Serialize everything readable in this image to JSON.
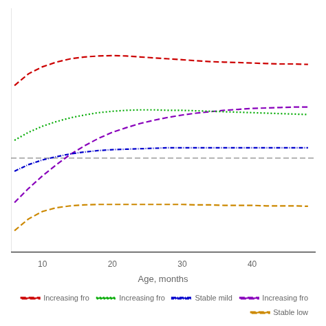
{
  "chart_data": {
    "type": "line",
    "xlabel": "Age, months",
    "x": [
      6,
      8,
      10,
      12,
      14,
      16,
      18,
      20,
      22,
      24,
      26,
      28,
      30,
      32,
      34,
      36,
      38,
      40,
      42,
      44,
      46,
      48
    ],
    "series": [
      {
        "name": "Increasing fro",
        "color": "#cc0000",
        "line_style": "dashed",
        "values": [
          1.55,
          1.8,
          1.95,
          2.05,
          2.12,
          2.16,
          2.18,
          2.19,
          2.18,
          2.16,
          2.14,
          2.12,
          2.1,
          2.08,
          2.06,
          2.05,
          2.04,
          2.03,
          2.02,
          2.01,
          2.01,
          2.0
        ]
      },
      {
        "name": "Increasing fro",
        "color": "#00aa00",
        "line_style": "dotted",
        "values": [
          0.38,
          0.55,
          0.68,
          0.78,
          0.86,
          0.92,
          0.97,
          1.0,
          1.02,
          1.03,
          1.03,
          1.02,
          1.02,
          1.01,
          1.0,
          0.99,
          0.98,
          0.97,
          0.96,
          0.95,
          0.94,
          0.93
        ]
      },
      {
        "name": "Stable mild",
        "color": "#0000cc",
        "line_style": "dashdot",
        "values": [
          -0.28,
          -0.14,
          -0.04,
          0.03,
          0.09,
          0.13,
          0.16,
          0.18,
          0.19,
          0.2,
          0.21,
          0.22,
          0.22,
          0.22,
          0.22,
          0.22,
          0.22,
          0.22,
          0.22,
          0.22,
          0.22,
          0.22
        ]
      },
      {
        "name": "Increasing fro",
        "color": "#8800bb",
        "line_style": "dashed",
        "values": [
          -0.95,
          -0.65,
          -0.38,
          -0.14,
          0.08,
          0.26,
          0.42,
          0.55,
          0.65,
          0.74,
          0.81,
          0.87,
          0.92,
          0.96,
          0.99,
          1.02,
          1.04,
          1.06,
          1.07,
          1.08,
          1.09,
          1.09
        ]
      },
      {
        "name": "Stable low",
        "color": "#cc8800",
        "line_style": "dashed",
        "values": [
          -1.55,
          -1.3,
          -1.14,
          -1.06,
          -1.02,
          -1.0,
          -0.99,
          -0.99,
          -0.99,
          -0.99,
          -0.99,
          -0.99,
          -0.99,
          -1.0,
          -1.0,
          -1.01,
          -1.01,
          -1.01,
          -1.02,
          -1.02,
          -1.02,
          -1.03
        ]
      }
    ],
    "hline": {
      "y": 0.0,
      "color": "#888888",
      "line_style": "dashed"
    },
    "xlim": [
      5.5,
      49
    ],
    "xticks": [
      10,
      20,
      30,
      40
    ],
    "ylim": [
      -2.0,
      3.2
    ],
    "yticks": [],
    "tick_labels": "x",
    "grid": false,
    "legend": "lower right"
  }
}
